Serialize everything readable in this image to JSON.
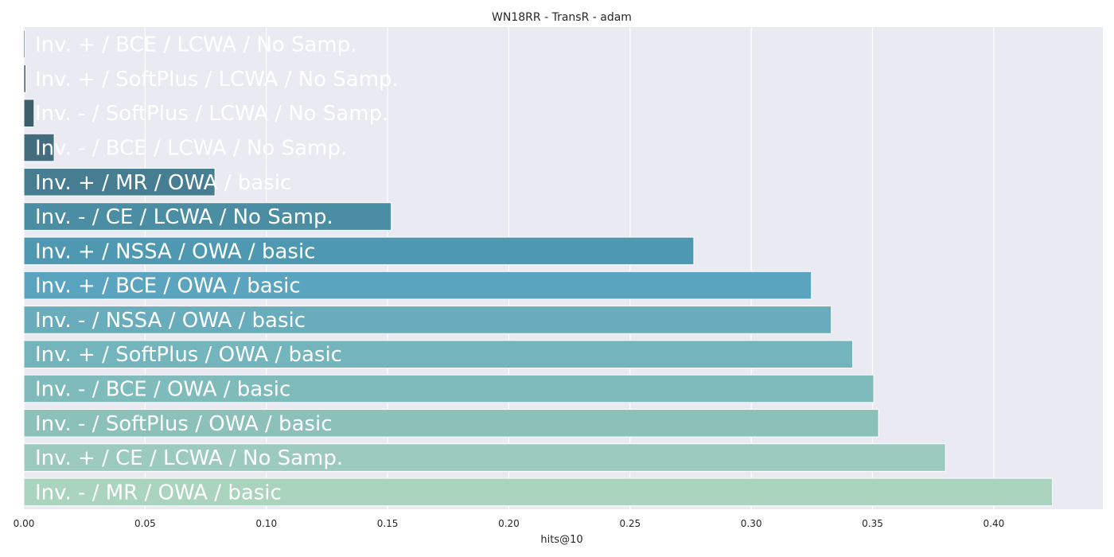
{
  "chart_data": {
    "type": "bar",
    "orientation": "horizontal",
    "title": "WN18RR - TransR - adam",
    "xlabel": "hits@10",
    "ylabel": "",
    "xlim": [
      0,
      0.445
    ],
    "xticks": [
      "0.00",
      "0.05",
      "0.10",
      "0.15",
      "0.20",
      "0.25",
      "0.30",
      "0.35",
      "0.40"
    ],
    "grid": true,
    "categories": [
      "Inv. + / BCE / LCWA / No Samp.",
      "Inv. + / SoftPlus / LCWA / No Samp.",
      "Inv. - / SoftPlus / LCWA / No Samp.",
      "Inv. - / BCE / LCWA / No Samp.",
      "Inv. + / MR / OWA / basic",
      "Inv. - / CE / LCWA / No Samp.",
      "Inv. + / NSSA / OWA / basic",
      "Inv. + / BCE / OWA / basic",
      "Inv. - / NSSA / OWA / basic",
      "Inv. + / SoftPlus / OWA / basic",
      "Inv. - / BCE / OWA / basic",
      "Inv. - / SoftPlus / OWA / basic",
      "Inv. + / CE / LCWA / No Samp.",
      "Inv. - / MR / OWA / basic"
    ],
    "values": [
      0.0005,
      0.0008,
      0.0042,
      0.0125,
      0.0788,
      0.1515,
      0.2763,
      0.3248,
      0.333,
      0.3418,
      0.3505,
      0.3525,
      0.3801,
      0.4242
    ],
    "colors": [
      "#2c3f4a",
      "#34505c",
      "#3d5e6b",
      "#416d7e",
      "#467d91",
      "#4b8da3",
      "#4f98b1",
      "#5aa4bf",
      "#69adbd",
      "#74b4bd",
      "#7fbbbb",
      "#8bc1b9",
      "#9ccabe",
      "#aad4be"
    ]
  }
}
